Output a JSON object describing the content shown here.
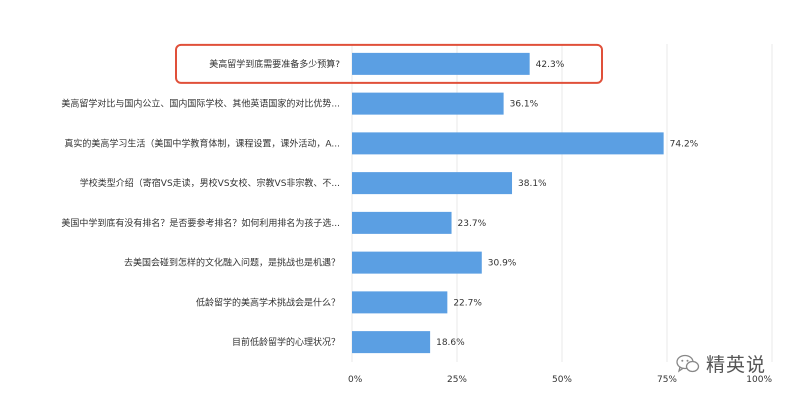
{
  "chart_data": {
    "type": "bar",
    "orientation": "horizontal",
    "categories": [
      "美高留学到底需要准备多少预算?",
      "美高留学对比与国内公立、国内国际学校、其他英语国家的对比优势...",
      "真实的美高学习生活（美国中学教育体制，课程设置，课外活动，A...",
      "学校类型介绍（寄宿VS走读，男校VS女校、宗教VS非宗教、不...",
      "美国中学到底有没有排名？是否要参考排名？如何利用排名为孩子选...",
      "去美国会碰到怎样的文化融入问题，是挑战也是机遇？",
      "低龄留学的美高学术挑战会是什么？",
      "目前低龄留学的心理状况？"
    ],
    "values": [
      42.3,
      36.1,
      74.2,
      38.1,
      23.7,
      30.9,
      22.7,
      18.6
    ],
    "value_labels": [
      "42.3%",
      "36.1%",
      "74.2%",
      "38.1%",
      "23.7%",
      "30.9%",
      "22.7%",
      "18.6%"
    ],
    "xlim": [
      0,
      100
    ],
    "x_ticks": [
      0,
      25,
      50,
      75,
      100
    ],
    "x_tick_labels": [
      "0%",
      "25%",
      "50%",
      "75%",
      "100%"
    ],
    "highlighted_index": 0,
    "bar_color": "#5b9fe3",
    "highlight_color": "#e0503a",
    "grid": true
  },
  "watermark": {
    "text": "精英说"
  }
}
